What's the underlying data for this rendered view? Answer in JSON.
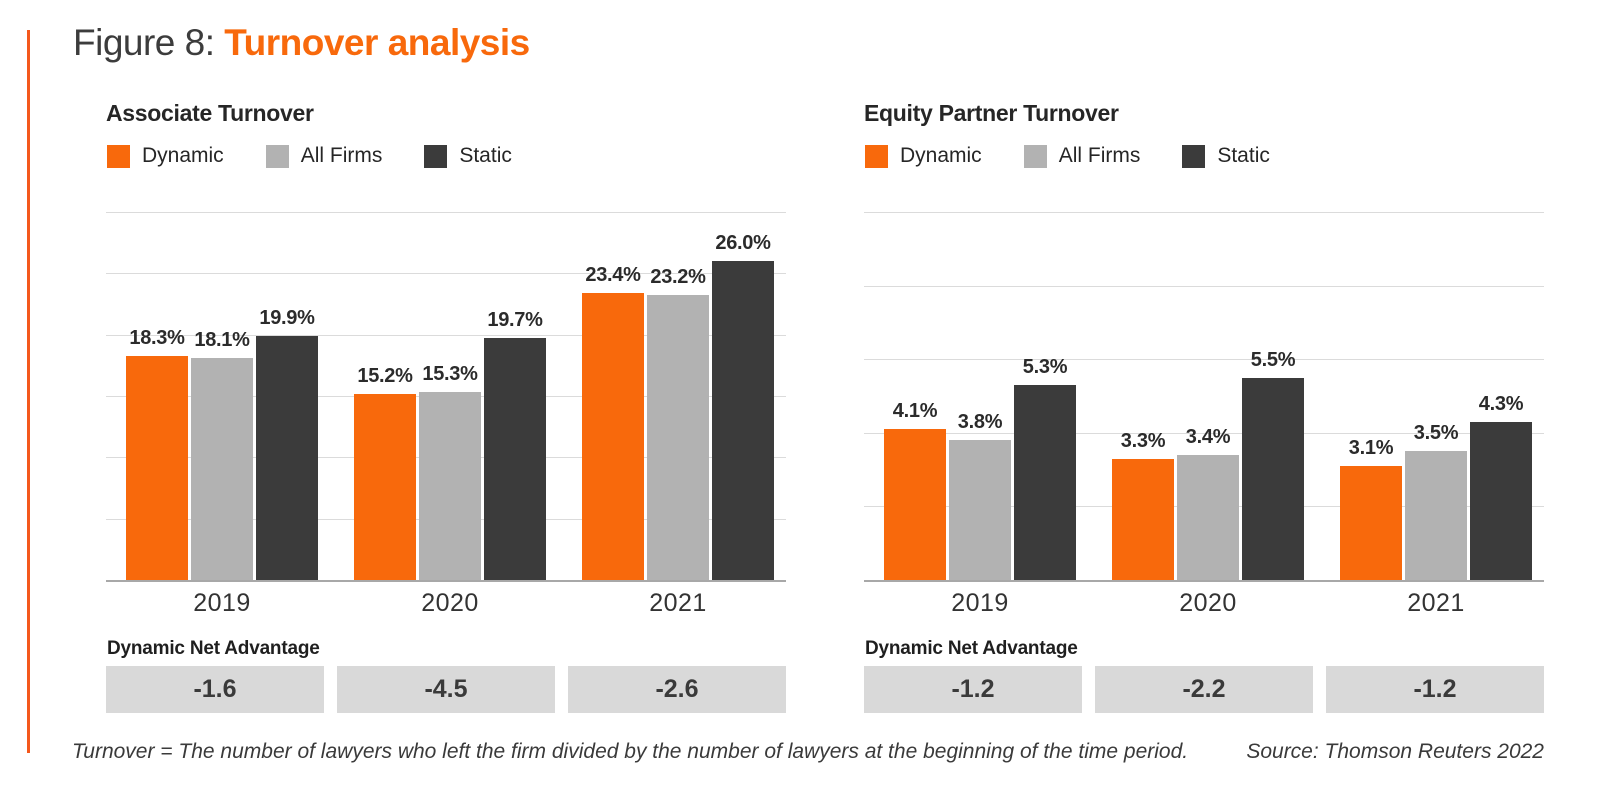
{
  "figure": {
    "title_prefix": "Figure 8:",
    "title_emphasis": "Turnover analysis"
  },
  "colors": {
    "accent_line": "#F4581C",
    "dynamic": "#F8690C",
    "all_firms": "#B2B2B2",
    "static": "#3B3B3B",
    "advantage_box": "#D9D9D9",
    "gridline": "#DBDBDB",
    "axis_line": "#A8A8A8",
    "label_text": "#2B2B2B"
  },
  "chart_data": [
    {
      "type": "bar",
      "title": "Associate Turnover",
      "categories": [
        "2019",
        "2020",
        "2021"
      ],
      "series": [
        {
          "name": "Dynamic",
          "color_key": "dynamic",
          "values": [
            18.3,
            15.2,
            23.4
          ]
        },
        {
          "name": "All Firms",
          "color_key": "all_firms",
          "values": [
            18.1,
            15.3,
            23.2
          ]
        },
        {
          "name": "Static",
          "color_key": "static",
          "values": [
            19.9,
            19.7,
            26.0
          ]
        }
      ],
      "value_suffix": "%",
      "ylim": [
        0,
        30
      ],
      "grid_step": 5,
      "grid": true,
      "legend_position": "top-left",
      "net_advantage": {
        "label": "Dynamic Net Advantage",
        "values": [
          "-1.6",
          "-4.5",
          "-2.6"
        ]
      }
    },
    {
      "type": "bar",
      "title": "Equity Partner Turnover",
      "categories": [
        "2019",
        "2020",
        "2021"
      ],
      "series": [
        {
          "name": "Dynamic",
          "color_key": "dynamic",
          "values": [
            4.1,
            3.3,
            3.1
          ]
        },
        {
          "name": "All Firms",
          "color_key": "all_firms",
          "values": [
            3.8,
            3.4,
            3.5
          ]
        },
        {
          "name": "Static",
          "color_key": "static",
          "values": [
            5.3,
            5.5,
            4.3
          ]
        }
      ],
      "value_suffix": "%",
      "ylim": [
        0,
        10
      ],
      "grid_step": 2,
      "grid": true,
      "legend_position": "top-left",
      "net_advantage": {
        "label": "Dynamic Net Advantage",
        "values": [
          "-1.2",
          "-2.2",
          "-1.2"
        ]
      }
    }
  ],
  "footer": {
    "note": "Turnover = The number of lawyers who left the firm divided by the number of lawyers at the beginning of the time period.",
    "source": "Source: Thomson Reuters 2022"
  }
}
